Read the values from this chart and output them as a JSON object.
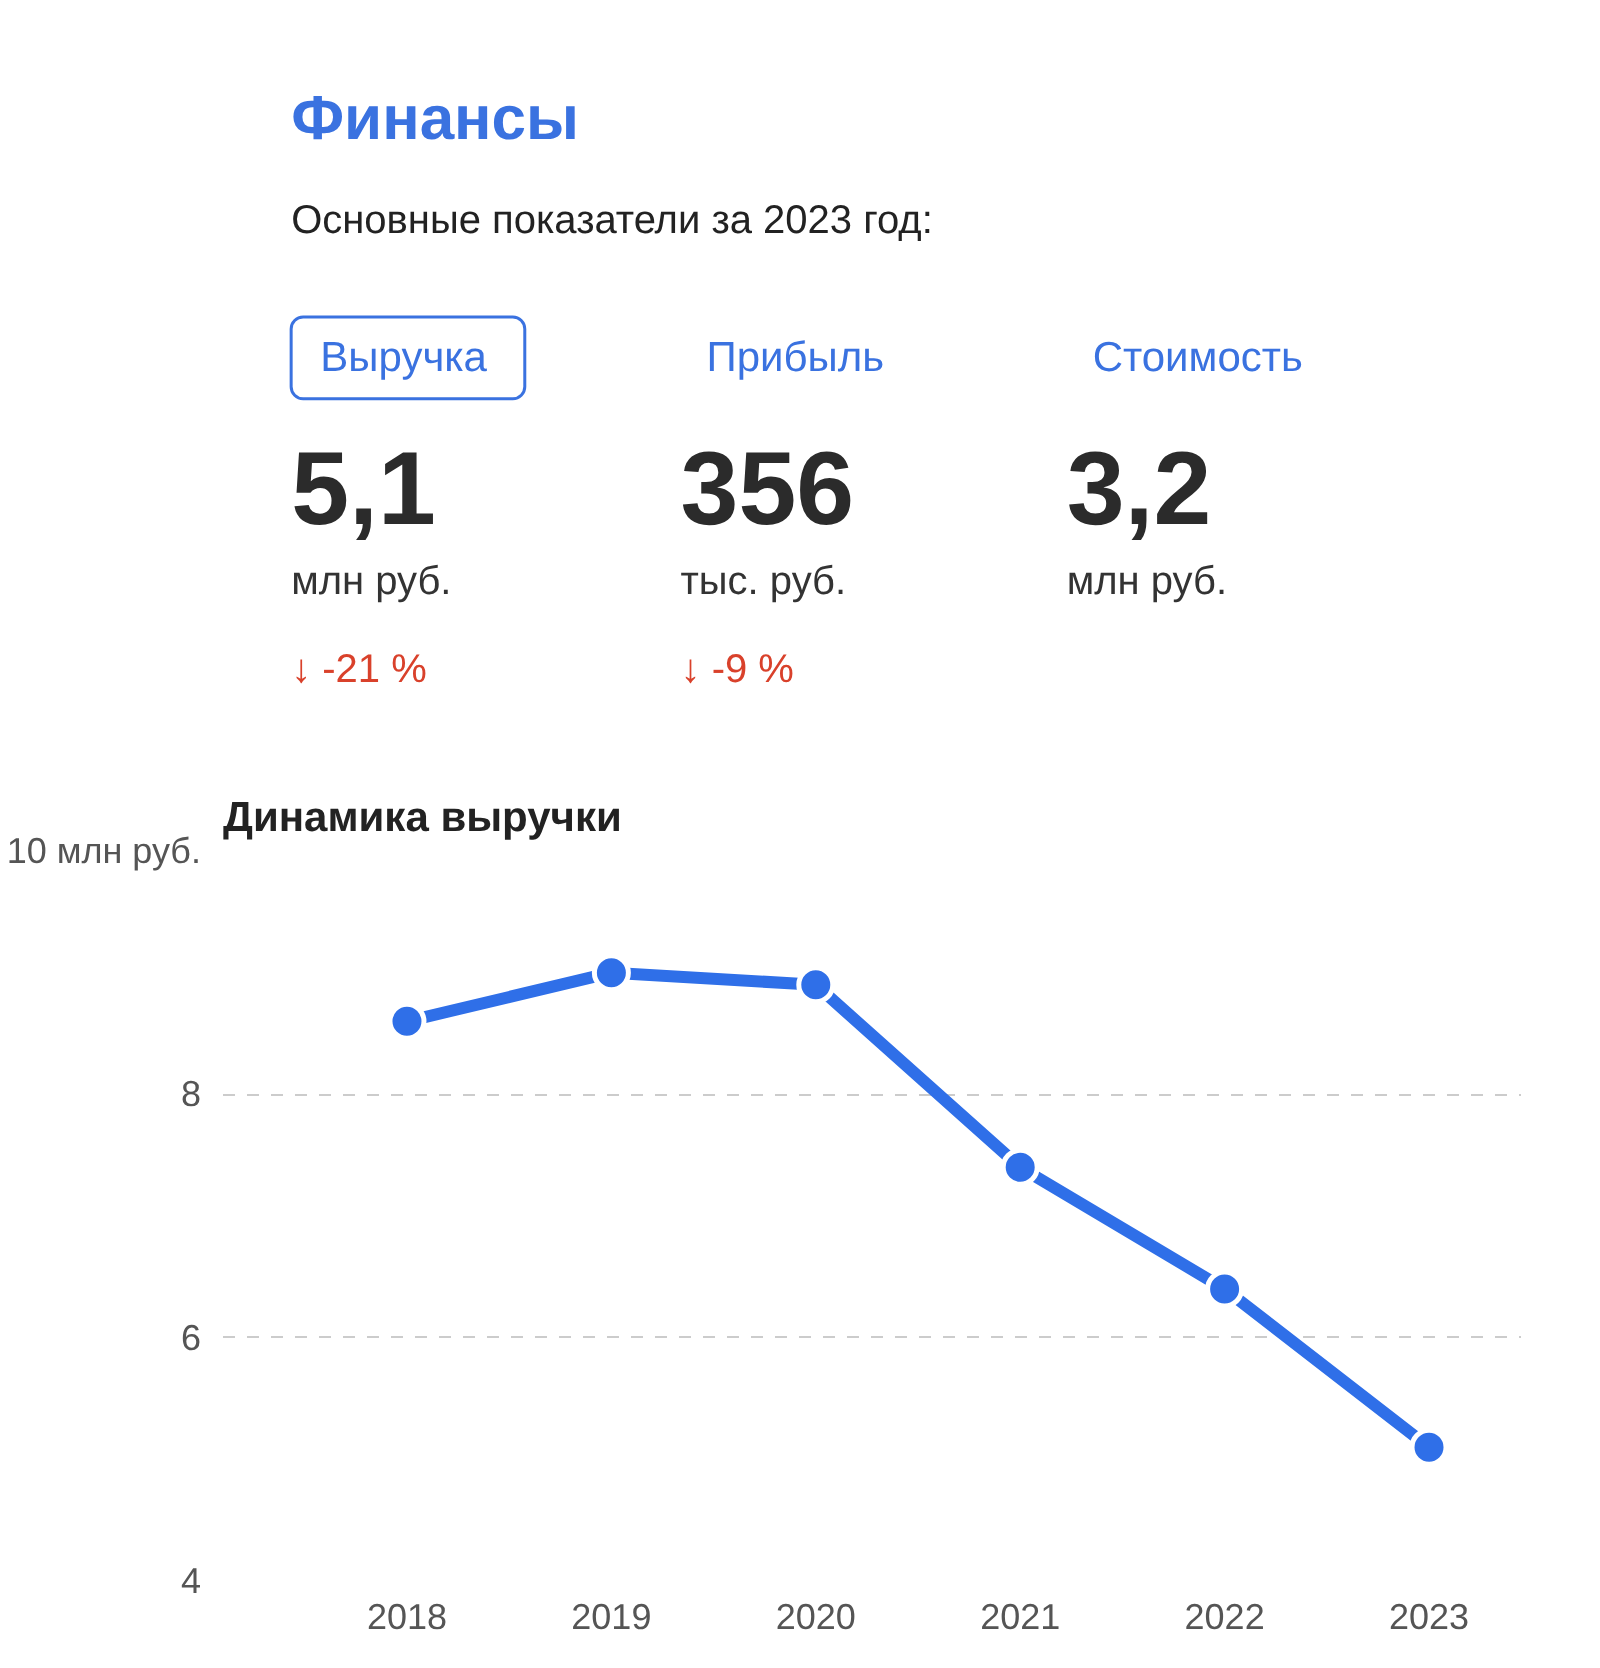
{
  "chart_data": [
    {
      "type": "other",
      "title": "Финансы",
      "subtitle": "Основные показатели за 2023 год:",
      "annotations": [
        "Выручка",
        "Прибыль",
        "Стоимость",
        "5,1",
        "356",
        "3,2",
        "млн руб.",
        "тыс. руб.",
        "млн руб.",
        "↓ -21 %",
        "↓ -9 %"
      ]
    },
    {
      "type": "line",
      "title": "Динамика выручки",
      "categories": [
        "2018",
        "2019",
        "2020",
        "2021",
        "2022",
        "2023"
      ],
      "series": [
        {
          "color": "#2f6fe8",
          "values": [
            8.6,
            9.0,
            8.9,
            7.4,
            6.4,
            5.1
          ]
        }
      ],
      "ylim": [
        4,
        10
      ],
      "yticks": [
        {
          "value": 10,
          "label": "10 млн руб."
        },
        8,
        6,
        4
      ],
      "grid": "y",
      "marker": "circle",
      "line_style": "solid"
    }
  ]
}
